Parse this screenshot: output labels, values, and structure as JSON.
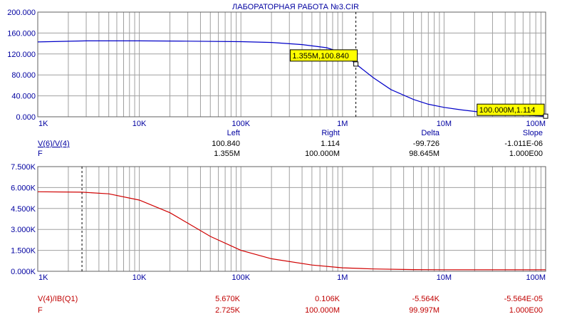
{
  "title": "ЛАБОРАТОРНАЯ РАБОТА №3.CIR",
  "colors": {
    "plot1": "#0000c8",
    "plot2": "#d00000",
    "grid": "#a0a0a0",
    "label_blue": "#0000a0",
    "label_red": "#c00000",
    "marker_fill": "#ffff00"
  },
  "x_ticks": [
    "1K",
    "10K",
    "100K",
    "1M",
    "10M",
    "100M"
  ],
  "chart_data": [
    {
      "type": "line",
      "x_scale": "log",
      "xlim": [
        1000,
        100000000
      ],
      "ylim": [
        0,
        200
      ],
      "y_ticks": [
        "200.000",
        "160.000",
        "120.000",
        "80.000",
        "40.000",
        "0.000"
      ],
      "y_tick_values": [
        200,
        160,
        120,
        80,
        40,
        0
      ],
      "grid": true,
      "series": [
        {
          "name": "V(6)/V(4)",
          "x": [
            1000,
            3000,
            10000,
            30000,
            100000,
            200000,
            400000,
            700000,
            1000000,
            1355000,
            2000000,
            3000000,
            5000000,
            7000000,
            10000000,
            15000000,
            25000000,
            50000000,
            100000000
          ],
          "y": [
            143,
            145,
            145,
            144.5,
            143.5,
            142,
            138,
            132,
            122,
            100.84,
            75,
            52,
            33,
            24,
            18,
            13,
            8,
            4,
            1.114
          ]
        }
      ],
      "cursors": [
        {
          "x": 1355000,
          "y": 100.84,
          "label": "1.355M,100.840"
        },
        {
          "x": 100000000,
          "y": 1.114,
          "label": "100.000M,1.114"
        }
      ],
      "readout": {
        "headers": [
          "Left",
          "Right",
          "Delta",
          "Slope"
        ],
        "rows": [
          {
            "label": "V(6)/V(4)",
            "values": [
              "100.840",
              "1.114",
              "-99.726",
              "-1.011E-06"
            ]
          },
          {
            "label": "F",
            "values": [
              "1.355M",
              "100.000M",
              "98.645M",
              "1.000E00"
            ]
          }
        ]
      }
    },
    {
      "type": "line",
      "x_scale": "log",
      "xlim": [
        1000,
        100000000
      ],
      "ylim": [
        0,
        7500
      ],
      "y_ticks": [
        "7.500K",
        "6.000K",
        "4.500K",
        "3.000K",
        "1.500K",
        "0.000K"
      ],
      "y_tick_values": [
        7500,
        6000,
        4500,
        3000,
        1500,
        0
      ],
      "grid": true,
      "series": [
        {
          "name": "V(4)/IB(Q1)",
          "x": [
            1000,
            2725,
            5000,
            10000,
            20000,
            30000,
            50000,
            100000,
            200000,
            500000,
            1000000,
            2000000,
            5000000,
            10000000,
            100000000
          ],
          "y": [
            5700,
            5670,
            5550,
            5100,
            4200,
            3450,
            2500,
            1500,
            900,
            450,
            250,
            170,
            120,
            110,
            106
          ]
        }
      ],
      "cursors": [
        {
          "x": 2725,
          "y": 5670
        }
      ],
      "readout": {
        "headers": [],
        "rows": [
          {
            "label": "V(4)/IB(Q1)",
            "values": [
              "5.670K",
              "0.106K",
              "-5.564K",
              "-5.564E-05"
            ]
          },
          {
            "label": "F",
            "values": [
              "2.725K",
              "100.000M",
              "99.997M",
              "1.000E00"
            ]
          }
        ]
      }
    }
  ]
}
